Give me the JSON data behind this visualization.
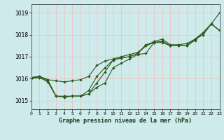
{
  "title": "Graphe pression niveau de la mer (hPa)",
  "bg_color": "#ceeaea",
  "grid_color": "#e8c8c8",
  "line_color": "#2d5a1e",
  "xlim": [
    0,
    23
  ],
  "ylim": [
    1014.6,
    1019.4
  ],
  "yticks": [
    1015,
    1016,
    1017,
    1018,
    1019
  ],
  "xticks": [
    0,
    1,
    2,
    3,
    4,
    5,
    6,
    7,
    8,
    9,
    10,
    11,
    12,
    13,
    14,
    15,
    16,
    17,
    18,
    19,
    20,
    21,
    22,
    23
  ],
  "series": [
    [
      1016.05,
      1016.1,
      1015.95,
      1015.9,
      1015.85,
      1015.9,
      1015.95,
      1016.1,
      1016.6,
      1016.8,
      1016.9,
      1017.0,
      1017.1,
      1017.2,
      1017.5,
      1017.7,
      1017.8,
      1017.55,
      1017.55,
      1017.6,
      1017.8,
      1018.0,
      1018.5,
      1019.0
    ],
    [
      1016.05,
      1016.1,
      1015.95,
      1015.2,
      1015.2,
      1015.2,
      1015.2,
      1015.3,
      1015.6,
      1015.8,
      1016.5,
      1016.7,
      1016.9,
      1017.1,
      1017.15,
      1017.65,
      1017.7,
      1017.5,
      1017.5,
      1017.5,
      1017.8,
      1018.1,
      1018.5,
      1018.2
    ],
    [
      1016.05,
      1016.05,
      1015.9,
      1015.2,
      1015.15,
      1015.2,
      1015.2,
      1015.3,
      1015.8,
      1016.3,
      1016.85,
      1016.95,
      1017.0,
      1017.15,
      1017.5,
      1017.65,
      1017.65,
      1017.5,
      1017.5,
      1017.5,
      1017.8,
      1018.1,
      1018.5,
      1018.2
    ],
    [
      1016.0,
      1016.05,
      1015.85,
      1015.2,
      1015.15,
      1015.2,
      1015.2,
      1015.45,
      1016.1,
      1016.5,
      1016.85,
      1016.95,
      1017.0,
      1017.15,
      1017.55,
      1017.65,
      1017.7,
      1017.5,
      1017.5,
      1017.5,
      1017.75,
      1018.1,
      1018.5,
      1018.2
    ]
  ]
}
